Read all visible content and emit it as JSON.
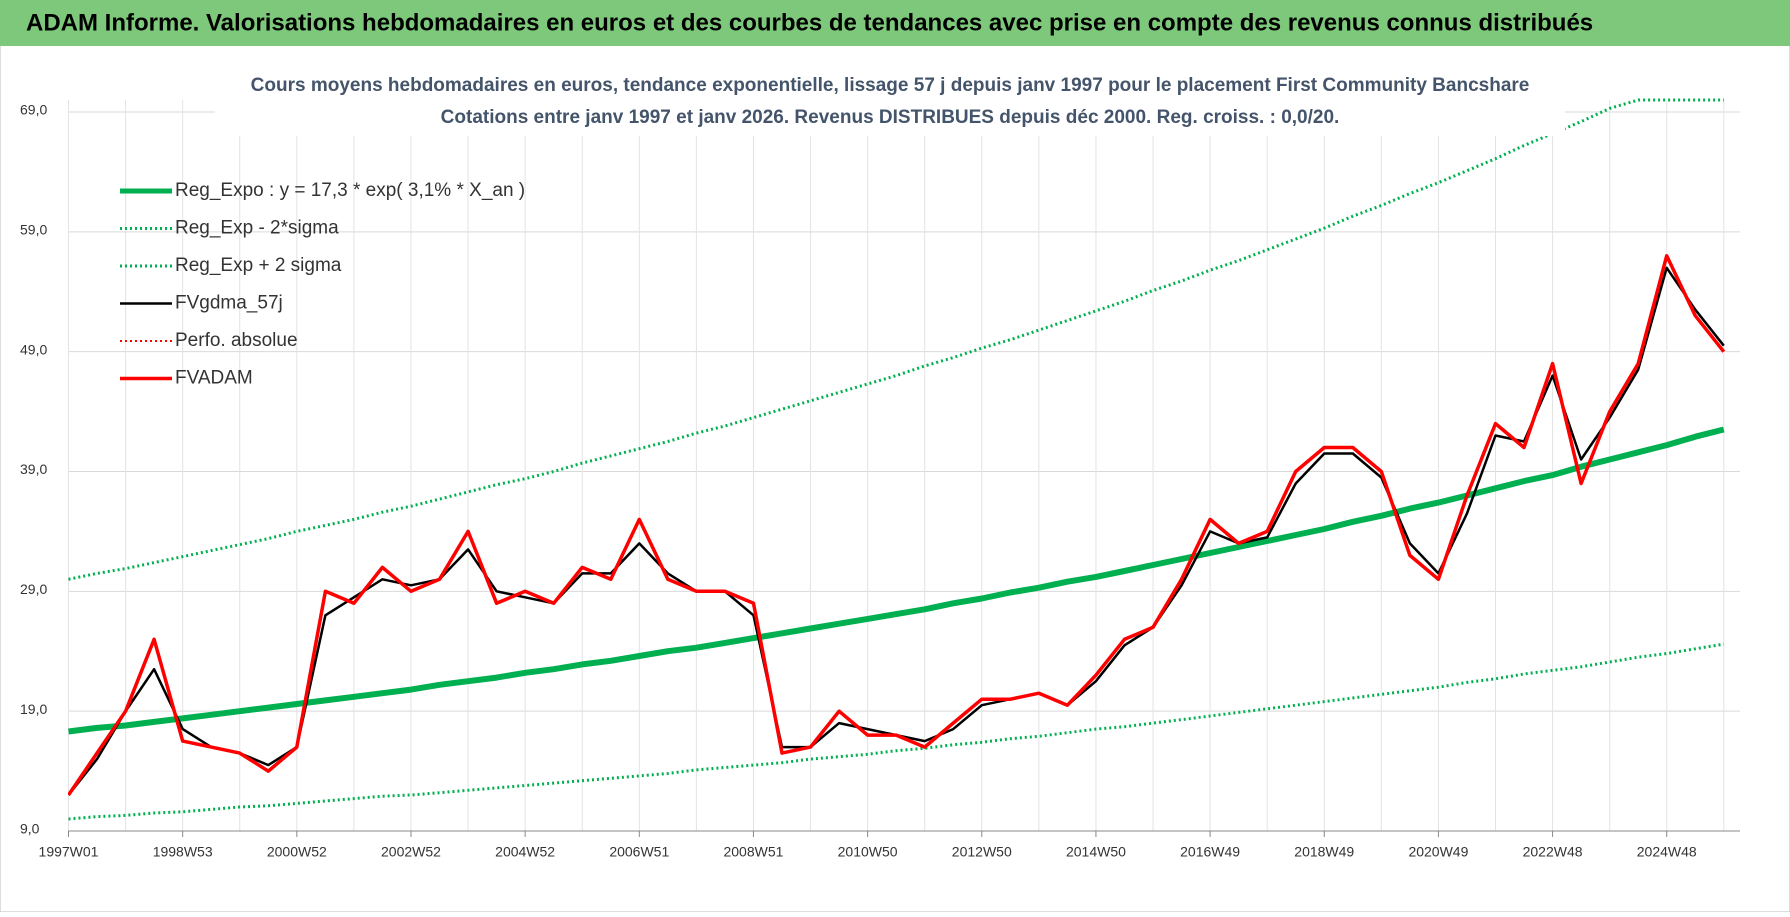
{
  "header": {
    "title": "ADAM Informe. Valorisations hebdomadaires en euros et des courbes de tendances avec prise en compte des revenus connus distribués"
  },
  "chart_data": {
    "type": "line",
    "title": "Cours moyens hebdomadaires en euros, tendance exponentielle, lissage 57 j depuis janv 1997  pour le placement First Community Bancshare",
    "subtitle": "Cotations entre janv 1997 et janv 2026. Revenus DISTRIBUES depuis déc 2000. Reg. croiss. : 0,0/20.",
    "categories": [
      "1997W01",
      null,
      null,
      null,
      "1998W53",
      null,
      null,
      null,
      "2000W52",
      null,
      null,
      null,
      "2002W52",
      null,
      null,
      null,
      "2004W52",
      null,
      null,
      null,
      "2006W51",
      null,
      null,
      null,
      "2008W51",
      null,
      null,
      null,
      "2010W50",
      null,
      null,
      null,
      "2012W50",
      null,
      null,
      null,
      "2014W50",
      null,
      null,
      null,
      "2016W49",
      null,
      null,
      null,
      "2018W49",
      null,
      null,
      null,
      "2020W49",
      null,
      null,
      null,
      "2022W48",
      null,
      null,
      null,
      "2024W48",
      null,
      null
    ],
    "ylim": [
      9,
      70
    ],
    "yticks": [
      {
        "value": 9,
        "label": "9,0"
      },
      {
        "value": 19,
        "label": "19,0"
      },
      {
        "value": 29,
        "label": "29,0"
      },
      {
        "value": 39,
        "label": "39,0"
      },
      {
        "value": 49,
        "label": "49,0"
      },
      {
        "value": 59,
        "label": "59,0"
      },
      {
        "value": 69,
        "label": "69,0"
      }
    ],
    "grid": true,
    "legend": "upper-left",
    "series": [
      {
        "name": "Reg_Expo : y = 17,3 * exp( 3,1% *  X_an )",
        "color": "#00b050",
        "style": "solid",
        "width": 6,
        "values": [
          17.3,
          17.6,
          17.8,
          18.1,
          18.4,
          18.7,
          19.0,
          19.3,
          19.6,
          19.9,
          20.2,
          20.5,
          20.8,
          21.2,
          21.5,
          21.8,
          22.2,
          22.5,
          22.9,
          23.2,
          23.6,
          24.0,
          24.3,
          24.7,
          25.1,
          25.5,
          25.9,
          26.3,
          26.7,
          27.1,
          27.5,
          28.0,
          28.4,
          28.9,
          29.3,
          29.8,
          30.2,
          30.7,
          31.2,
          31.7,
          32.2,
          32.7,
          33.2,
          33.7,
          34.2,
          34.8,
          35.3,
          35.9,
          36.4,
          37.0,
          37.6,
          38.2,
          38.7,
          39.4,
          40.0,
          40.6,
          41.2,
          41.9,
          42.5
        ]
      },
      {
        "name": "Reg_Exp - 2*sigma",
        "color": "#00b050",
        "style": "dotted",
        "width": 3,
        "values": [
          10.0,
          10.2,
          10.3,
          10.5,
          10.6,
          10.8,
          11.0,
          11.1,
          11.3,
          11.5,
          11.7,
          11.9,
          12.0,
          12.2,
          12.4,
          12.6,
          12.8,
          13.0,
          13.2,
          13.4,
          13.6,
          13.8,
          14.1,
          14.3,
          14.5,
          14.7,
          15.0,
          15.2,
          15.4,
          15.7,
          15.9,
          16.2,
          16.4,
          16.7,
          16.9,
          17.2,
          17.5,
          17.7,
          18.0,
          18.3,
          18.6,
          18.9,
          19.2,
          19.5,
          19.8,
          20.1,
          20.4,
          20.7,
          21.0,
          21.4,
          21.7,
          22.1,
          22.4,
          22.7,
          23.1,
          23.5,
          23.8,
          24.2,
          24.6
        ]
      },
      {
        "name": "Reg_Exp + 2 sigma",
        "color": "#00b050",
        "style": "dotted",
        "width": 3,
        "values": [
          30.0,
          30.5,
          30.9,
          31.4,
          31.9,
          32.4,
          32.9,
          33.4,
          34.0,
          34.5,
          35.0,
          35.6,
          36.1,
          36.7,
          37.3,
          37.9,
          38.4,
          39.0,
          39.7,
          40.3,
          40.9,
          41.5,
          42.2,
          42.8,
          43.5,
          44.2,
          44.9,
          45.6,
          46.3,
          47.0,
          47.8,
          48.5,
          49.3,
          50.0,
          50.8,
          51.6,
          52.4,
          53.2,
          54.1,
          54.9,
          55.8,
          56.6,
          57.5,
          58.4,
          59.3,
          60.3,
          61.2,
          62.2,
          63.1,
          64.1,
          65.1,
          66.2,
          67.2,
          68.2,
          69.3,
          70,
          70,
          70,
          70
        ]
      },
      {
        "name": "FVgdma_57j",
        "color": "#000000",
        "style": "solid",
        "width": 2.5,
        "values": [
          12,
          15,
          19,
          22.5,
          17.5,
          16,
          15.5,
          14.5,
          16,
          27,
          28.5,
          30,
          29.5,
          30,
          32.5,
          29,
          28.5,
          28,
          30.5,
          30.5,
          33,
          30.5,
          29,
          29,
          27,
          16,
          16,
          18,
          17.5,
          17,
          16.5,
          17.5,
          19.5,
          20,
          20.5,
          19.5,
          21.5,
          24.5,
          26,
          29.5,
          34,
          33,
          33.5,
          38,
          40.5,
          40.5,
          38.5,
          33,
          30.5,
          35.5,
          42,
          41.5,
          47,
          40,
          43.5,
          47.5,
          56,
          52.5,
          49.5
        ]
      },
      {
        "name": "Perfo. absolue",
        "color": "#ff0000",
        "style": "dotted",
        "width": 2,
        "values": [
          null,
          null,
          null,
          null,
          null,
          null,
          null,
          null,
          null,
          null,
          null,
          null,
          null,
          null,
          null,
          null,
          null,
          null,
          null,
          null,
          null,
          null,
          null,
          null,
          null,
          null,
          null,
          null,
          null,
          null,
          null,
          null,
          null,
          null,
          null,
          null,
          null,
          null,
          null,
          null,
          null,
          null,
          null,
          null,
          null,
          null,
          null,
          null,
          null,
          null,
          null,
          null,
          null,
          null,
          null,
          null,
          null,
          null,
          null
        ]
      },
      {
        "name": "FVADAM",
        "color": "#ff0000",
        "style": "solid",
        "width": 3.5,
        "values": [
          12,
          15.5,
          19,
          25,
          16.5,
          16,
          15.5,
          14,
          16,
          29,
          28,
          31,
          29,
          30,
          34,
          28,
          29,
          28,
          31,
          30,
          35,
          30,
          29,
          29,
          28,
          15.5,
          16,
          19,
          17,
          17,
          16,
          18,
          20,
          20,
          20.5,
          19.5,
          22,
          25,
          26,
          30,
          35,
          33,
          34,
          39,
          41,
          41,
          39,
          32,
          30,
          37,
          43,
          41,
          48,
          38,
          44,
          48,
          57,
          52,
          49
        ]
      }
    ]
  }
}
